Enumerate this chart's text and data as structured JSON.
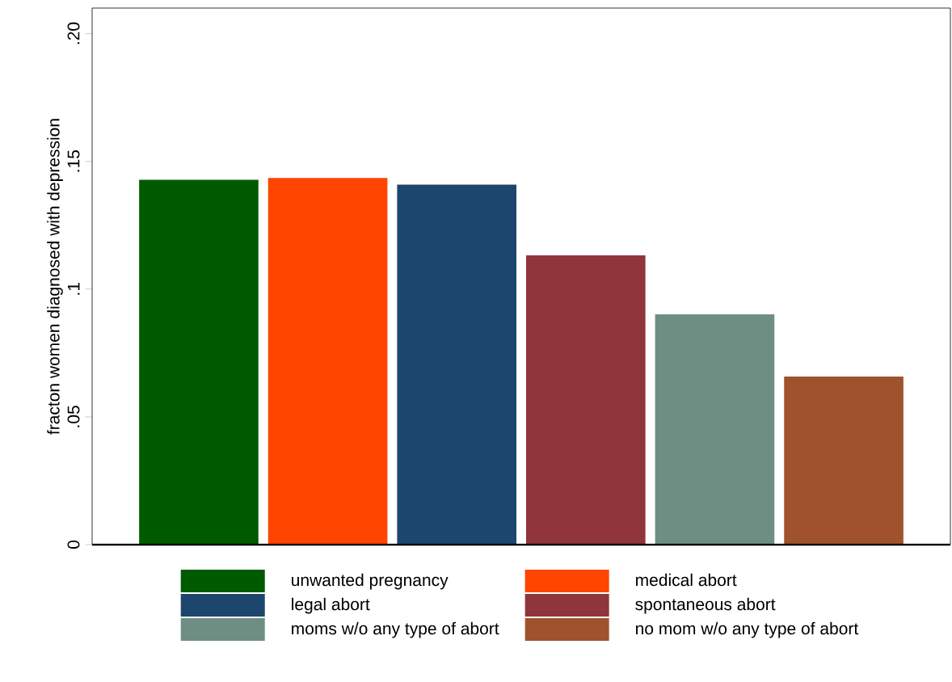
{
  "chart_data": {
    "type": "bar",
    "ylabel": "fracton women diagnosed with depression",
    "categories": [
      null
    ],
    "series": [
      {
        "name": "unwanted pregnancy",
        "color": "#005a00",
        "values": [
          0.1428
        ]
      },
      {
        "name": "medical abort",
        "color": "#ff4500",
        "values": [
          0.1435
        ]
      },
      {
        "name": "legal abort",
        "color": "#1c466e",
        "values": [
          0.1409
        ]
      },
      {
        "name": "spontaneous abort",
        "color": "#90353b",
        "values": [
          0.1132
        ]
      },
      {
        "name": "moms w/o any type of abort",
        "color": "#6e8e84",
        "values": [
          0.0901
        ]
      },
      {
        "name": "no mom w/o any type of abort",
        "color": "#a0522d",
        "values": [
          0.0658
        ]
      }
    ],
    "ylim": [
      0,
      0.21
    ],
    "yticks": [
      {
        "value": 0,
        "label": "0"
      },
      {
        "value": 0.05,
        "label": ".05"
      },
      {
        "value": 0.1,
        "label": ".1"
      },
      {
        "value": 0.15,
        "label": ".15"
      },
      {
        "value": 0.2,
        "label": ".20"
      }
    ],
    "grid": false,
    "legend": "bottom"
  }
}
